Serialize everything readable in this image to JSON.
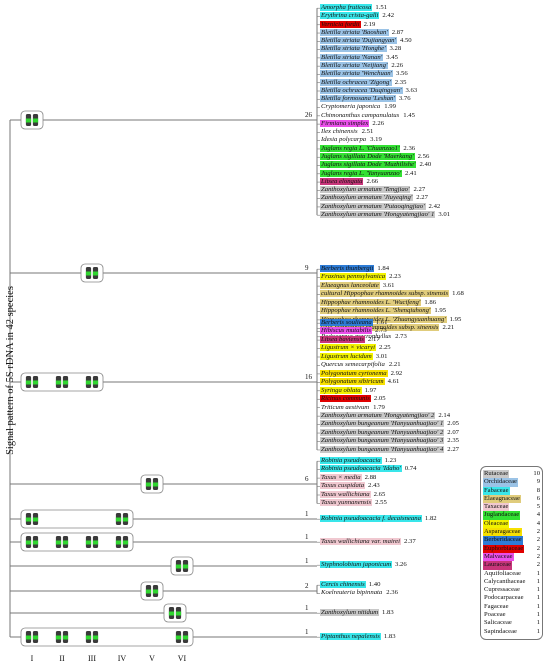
{
  "y_axis_title": "Signal pattern of 5S rDNA in 42 species",
  "columns": [
    "I",
    "II",
    "III",
    "IV",
    "V",
    "VI"
  ],
  "colors": {
    "Rutaceae": "#c8c8c8",
    "Orchidaceae": "#9bc3e6",
    "Fabaceae": "#39e6ea",
    "Elaeagnaceae": "#e0cc7c",
    "Taxaceae": "#f0c8d0",
    "Juglandaceae": "#33e033",
    "Oleaceae": "#f2f200",
    "Asparagaceae": "#f7e000",
    "Berberidaceae": "#2e7cd6",
    "Euphorbiaceae": "#e00000",
    "Malvaceae": "#ea50ea",
    "Lauraceae": "#c8357a",
    "none": ""
  },
  "groups": [
    {
      "count": "26",
      "species": [
        {
          "name": "Amorpha fruticosa",
          "value": "1.51",
          "family": "Fabaceae"
        },
        {
          "name": "Erythrina crista-galli",
          "value": "2.42",
          "family": "Fabaceae"
        },
        {
          "name": "Vernicia fordii",
          "value": "2.19",
          "family": "Euphorbiaceae"
        },
        {
          "name": "Bletilla striata 'Baoshan'",
          "value": "2.87",
          "family": "Orchidaceae"
        },
        {
          "name": "Bletilla striata 'Dujiangyan'",
          "value": "4.50",
          "family": "Orchidaceae"
        },
        {
          "name": "Bletilla striata 'Honghe'",
          "value": "3.28",
          "family": "Orchidaceae"
        },
        {
          "name": "Bletilla striata 'Nanan'",
          "value": "3.45",
          "family": "Orchidaceae"
        },
        {
          "name": "Bletilla striata 'Neijiang'",
          "value": "2.26",
          "family": "Orchidaceae"
        },
        {
          "name": "Bletilla striata 'Wenchuan'",
          "value": "3.56",
          "family": "Orchidaceae"
        },
        {
          "name": "Bletilla ochracea 'Zigong'",
          "value": "2.35",
          "family": "Orchidaceae"
        },
        {
          "name": "Bletilla ochracea 'Duqingyan'",
          "value": "3.63",
          "family": "Orchidaceae"
        },
        {
          "name": "Bletilla formosana 'Leshan'",
          "value": "3.76",
          "family": "Orchidaceae"
        },
        {
          "name": "Cryptomeria japonica",
          "value": "1.99",
          "family": "none"
        },
        {
          "name": "Chimonanthus campanulatus",
          "value": "1.45",
          "family": "none"
        },
        {
          "name": "Firmiana simplex",
          "value": "2.26",
          "family": "Malvaceae"
        },
        {
          "name": "Ilex chinensis",
          "value": "2.51",
          "family": "none"
        },
        {
          "name": "Idesia polycarpa",
          "value": "3.19",
          "family": "none"
        },
        {
          "name": "Juglans regia L. 'Chuanzao1'",
          "value": "2.36",
          "family": "Juglandaceae"
        },
        {
          "name": "Juglans sigillata Dode 'Maerkang'",
          "value": "2.56",
          "family": "Juglandaceae"
        },
        {
          "name": "Juglans sigillata Dode 'Muzhilishe'",
          "value": "2.40",
          "family": "Juglandaceae"
        },
        {
          "name": "Juglans regia L. 'Yanyuanzao'",
          "value": "2.41",
          "family": "Juglandaceae"
        },
        {
          "name": "Litsea elongata",
          "value": "2.66",
          "family": "Lauraceae"
        },
        {
          "name": "Zanthoxylum armatum 'Tengjiao'",
          "value": "2.27",
          "family": "Rutaceae"
        },
        {
          "name": "Zanthoxylum armatum 'Jiuyeqing'",
          "value": "2.27",
          "family": "Rutaceae"
        },
        {
          "name": "Zanthoxylum armatum 'Putaoqingjiao'",
          "value": "2.42",
          "family": "Rutaceae"
        },
        {
          "name": "Zanthoxylum armatum 'Hongyatengjiao' 1",
          "value": "3.01",
          "family": "Rutaceae"
        }
      ]
    },
    {
      "count": "9",
      "species": [
        {
          "name": "Berberis thunbergii",
          "value": "1.84",
          "family": "Berberidaceae"
        },
        {
          "name": "Fraxinus pennsylvanica",
          "value": "2.23",
          "family": "Oleaceae"
        },
        {
          "name": "Elaeagnus lanceolate",
          "value": "3.61",
          "family": "Elaeagnaceae"
        },
        {
          "name": "cultural Hippophae rhamnoides subsp. sinensis",
          "value": "1.68",
          "family": "Elaeagnaceae"
        },
        {
          "name": "Hippophae rhamnoides L. 'Wucifeng'",
          "value": "1.86",
          "family": "Elaeagnaceae"
        },
        {
          "name": "Hippophae rhamnoides L. 'Shenqiuhong'",
          "value": "1.95",
          "family": "Elaeagnaceae"
        },
        {
          "name": "Hippophae rhamnoides L. 'Zhuangyuanhuang'",
          "value": "1.95",
          "family": "Elaeagnaceae"
        },
        {
          "name": "wild Hippophae rhamnoides subsp. sinensis",
          "value": "2.21",
          "family": "Elaeagnaceae"
        },
        {
          "name": "Podocarpus macrophyllus",
          "value": "2.73",
          "family": "none"
        }
      ]
    },
    {
      "count": "16",
      "species": [
        {
          "name": "Berberis soulieana",
          "value": "1.61",
          "family": "Berberidaceae"
        },
        {
          "name": "Hibiscus mutabilis",
          "value": "2.73",
          "family": "Malvaceae"
        },
        {
          "name": "Litsea baviensis",
          "value": "2.17",
          "family": "Lauraceae"
        },
        {
          "name": "Ligustrum × vicaryi",
          "value": "2.25",
          "family": "Oleaceae"
        },
        {
          "name": "Ligustrum lucidum",
          "value": "3.01",
          "family": "Oleaceae"
        },
        {
          "name": "Quercus semecarpifolia",
          "value": "2.21",
          "family": "none"
        },
        {
          "name": "Polygonatum cyrtonema",
          "value": "2.92",
          "family": "Asparagaceae"
        },
        {
          "name": "Polygonatum sibiricum",
          "value": "4.61",
          "family": "Asparagaceae"
        },
        {
          "name": "Syringa oblata",
          "value": "1.97",
          "family": "Oleaceae"
        },
        {
          "name": "Ricinus communis",
          "value": "2.05",
          "family": "Euphorbiaceae"
        },
        {
          "name": "Triticum aestivum",
          "value": "1.79",
          "family": "none"
        },
        {
          "name": "Zanthoxylum armatum 'Hongyatengjiao' 2",
          "value": "2.14",
          "family": "Rutaceae"
        },
        {
          "name": "Zanthoxylum bungeanum 'Hanyuanhuajiao' 1",
          "value": "2.05",
          "family": "Rutaceae"
        },
        {
          "name": "Zanthoxylum bungeanum 'Hanyuanhuajiao' 2",
          "value": "2.07",
          "family": "Rutaceae"
        },
        {
          "name": "Zanthoxylum bungeanum 'Hanyuanhuajiao' 3",
          "value": "2.35",
          "family": "Rutaceae"
        },
        {
          "name": "Zanthoxylum bungeanum 'Hanyuanhuajiao' 4",
          "value": "2.27",
          "family": "Rutaceae"
        }
      ]
    },
    {
      "count": "6",
      "species": [
        {
          "name": "Robinia pseudoacacia",
          "value": "1.23",
          "family": "Fabaceae"
        },
        {
          "name": "Robinia pseudoacacia 'Idaho'",
          "value": "0.74",
          "family": "Fabaceae"
        },
        {
          "name": "Taxus × media",
          "value": "2.88",
          "family": "Taxaceae"
        },
        {
          "name": "Taxus cuspidata",
          "value": "2.43",
          "family": "Taxaceae"
        },
        {
          "name": "Taxus wallichiana",
          "value": "2.65",
          "family": "Taxaceae"
        },
        {
          "name": "Taxus yunnanensis",
          "value": "2.55",
          "family": "Taxaceae"
        }
      ]
    },
    {
      "count": "1",
      "species": [
        {
          "name": "Robinia pseudoacacia f. decaisneana",
          "value": "1.82",
          "family": "Fabaceae"
        }
      ]
    },
    {
      "count": "1",
      "species": [
        {
          "name": "Taxus wallichiana var. mairei",
          "value": "2.37",
          "family": "Taxaceae"
        }
      ]
    },
    {
      "count": "1",
      "species": [
        {
          "name": "Styphnolobium japonicum",
          "value": "3.26",
          "family": "Fabaceae"
        }
      ]
    },
    {
      "count": "2",
      "species": [
        {
          "name": "Cercis chinensis",
          "value": "1.40",
          "family": "Fabaceae"
        },
        {
          "name": "Koelreuteria bipinnata",
          "value": "2.36",
          "family": "none"
        }
      ]
    },
    {
      "count": "1",
      "species": [
        {
          "name": "Zanthoxylum nitidum",
          "value": "1.83",
          "family": "Rutaceae"
        }
      ]
    },
    {
      "count": "1",
      "species": [
        {
          "name": "Piptanthus nepalensis",
          "value": "1.83",
          "family": "Fabaceae"
        }
      ]
    }
  ],
  "legend": [
    {
      "family": "Rutaceae",
      "count": "10"
    },
    {
      "family": "Orchidaceae",
      "count": "9"
    },
    {
      "family": "Fabaceae",
      "count": "8"
    },
    {
      "family": "Elaeagnaceae",
      "count": "6"
    },
    {
      "family": "Taxaceae",
      "count": "5"
    },
    {
      "family": "Juglandaceae",
      "count": "4"
    },
    {
      "family": "Oleaceae",
      "count": "4"
    },
    {
      "family": "Asparagaceae",
      "count": "2"
    },
    {
      "family": "Berberidaceae",
      "count": "2"
    },
    {
      "family": "Euphorbiaceae",
      "count": "2"
    },
    {
      "family": "Malvaceae",
      "count": "2"
    },
    {
      "family": "Lauraceae",
      "count": "2"
    },
    {
      "family": "Aquifoliaceae",
      "count": "1"
    },
    {
      "family": "Calycanthaceae",
      "count": "1"
    },
    {
      "family": "Cupressaceae",
      "count": "1"
    },
    {
      "family": "Podocarpaceae",
      "count": "1"
    },
    {
      "family": "Fagaceae",
      "count": "1"
    },
    {
      "family": "Poaceae",
      "count": "1"
    },
    {
      "family": "Salicaceae",
      "count": "1"
    },
    {
      "family": "Sapindaceae",
      "count": "1"
    }
  ]
}
